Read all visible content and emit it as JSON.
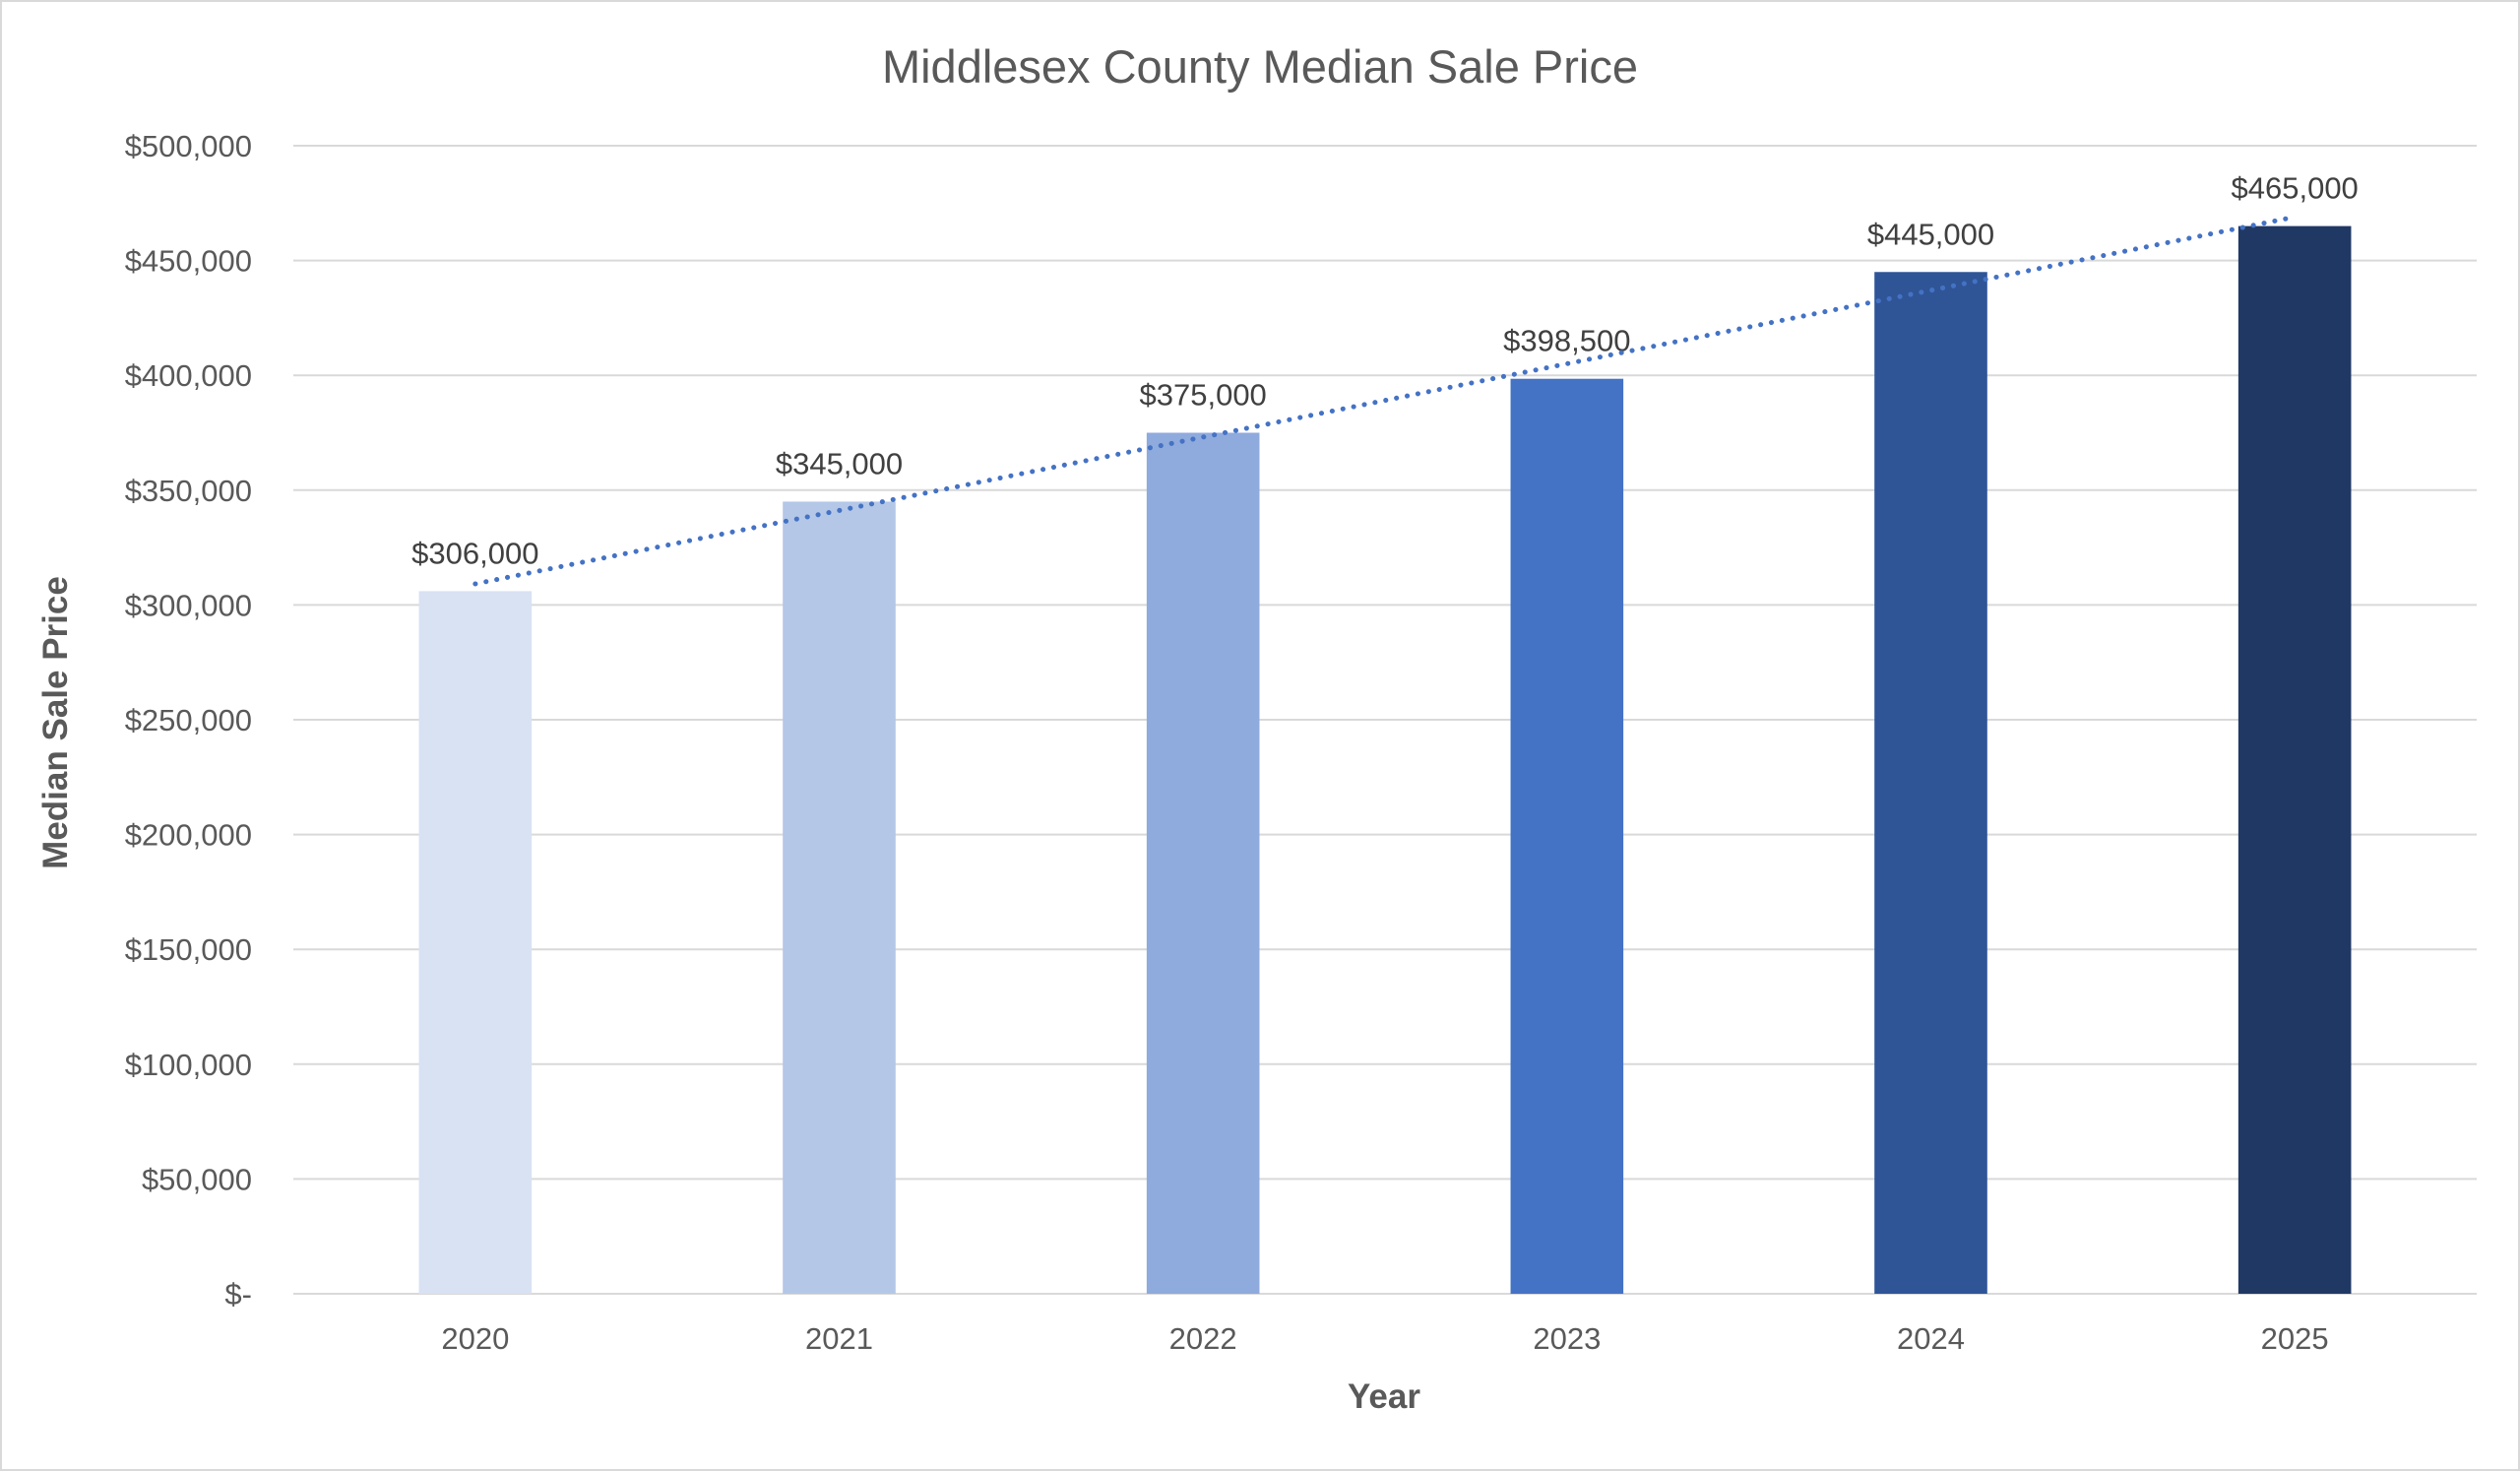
{
  "chart_data": {
    "type": "bar",
    "title": "Middlesex County Median Sale Price",
    "xlabel": "Year",
    "ylabel": "Median Sale Price",
    "categories": [
      "2020",
      "2021",
      "2022",
      "2023",
      "2024",
      "2025"
    ],
    "values": [
      306000,
      345000,
      375000,
      398500,
      445000,
      465000
    ],
    "data_labels": [
      "$306,000",
      "$345,000",
      "$375,000",
      "$398,500",
      "$445,000",
      "$465,000"
    ],
    "ylim": [
      0,
      500000
    ],
    "y_ticks": [
      0,
      50000,
      100000,
      150000,
      200000,
      250000,
      300000,
      350000,
      400000,
      450000,
      500000
    ],
    "y_tick_labels": [
      "$-",
      "$50,000",
      "$100,000",
      "$150,000",
      "$200,000",
      "$250,000",
      "$300,000",
      "$350,000",
      "$400,000",
      "$450,000",
      "$500,000"
    ],
    "bar_colors": [
      "#d9e2f3",
      "#b4c7e7",
      "#8faadc",
      "#4472c4",
      "#2f5597",
      "#203864"
    ],
    "grid": true,
    "legend": "none",
    "trendline": {
      "type": "linear",
      "style": "dotted",
      "color": "#4472c4"
    }
  }
}
